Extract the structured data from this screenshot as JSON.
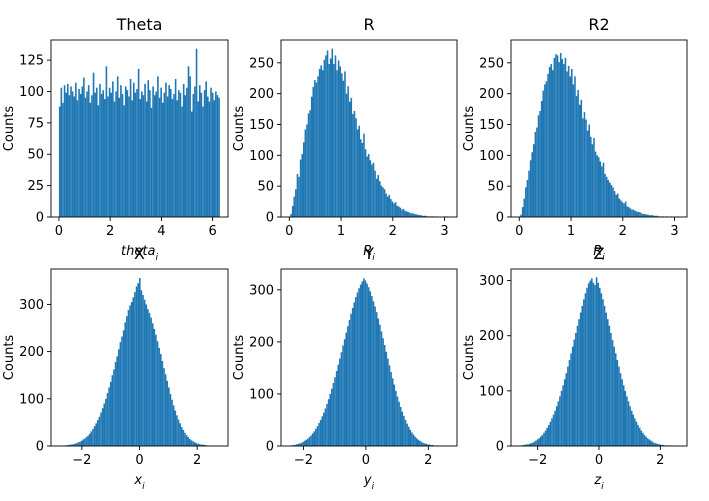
{
  "figure": {
    "background": "#ffffff",
    "bar_color": "#1f77b4"
  },
  "chart_data": [
    {
      "type": "bar",
      "title": "Theta",
      "xlabel": "theta_i",
      "ylabel": "Counts",
      "xlim": [
        -0.31,
        6.6
      ],
      "ylim": [
        0,
        141
      ],
      "xticks": [
        0,
        2,
        4,
        6
      ],
      "xtick_labels": [
        "0",
        "2",
        "4",
        "6"
      ],
      "yticks": [
        0,
        25,
        50,
        75,
        100,
        125
      ],
      "ytick_labels": [
        "0",
        "25",
        "50",
        "75",
        "100",
        "125"
      ],
      "bins": {
        "start": 0,
        "end": 6.2832,
        "count": 100
      },
      "counts": [
        88,
        103,
        91,
        105,
        99,
        106,
        97,
        104,
        100,
        96,
        107,
        93,
        102,
        98,
        104,
        111,
        95,
        100,
        105,
        91,
        97,
        115,
        99,
        103,
        89,
        106,
        98,
        101,
        94,
        120,
        96,
        103,
        99,
        108,
        92,
        100,
        112,
        95,
        105,
        98,
        89,
        104,
        101,
        96,
        110,
        93,
        107,
        99,
        102,
        118,
        94,
        100,
        97,
        106,
        92,
        109,
        101,
        87,
        104,
        97,
        100,
        112,
        95,
        103,
        91,
        99,
        107,
        96,
        105,
        102,
        94,
        98,
        110,
        93,
        101,
        99,
        88,
        106,
        97,
        103,
        120,
        112,
        84,
        98,
        104,
        134,
        92,
        105,
        99,
        88,
        101,
        108,
        96,
        92,
        103,
        99,
        93,
        100,
        97,
        95
      ]
    },
    {
      "type": "bar",
      "title": "R",
      "xlabel": "R_i",
      "ylabel": "Counts",
      "xlim": [
        -0.16,
        3.24
      ],
      "ylim": [
        0,
        287
      ],
      "xticks": [
        0,
        1,
        2,
        3
      ],
      "xtick_labels": [
        "0",
        "1",
        "2",
        "3"
      ],
      "yticks": [
        0,
        50,
        100,
        150,
        200,
        250
      ],
      "ytick_labels": [
        "0",
        "50",
        "100",
        "150",
        "200",
        "250"
      ],
      "bins": {
        "start": 0.02,
        "end": 3.08,
        "count": 100
      },
      "counts": [
        5,
        18,
        33,
        45,
        70,
        65,
        93,
        102,
        121,
        142,
        150,
        168,
        173,
        195,
        211,
        222,
        218,
        228,
        240,
        246,
        238,
        255,
        262,
        270,
        248,
        257,
        273,
        248,
        262,
        238,
        254,
        244,
        233,
        221,
        236,
        200,
        212,
        187,
        193,
        167,
        172,
        160,
        142,
        148,
        126,
        120,
        135,
        110,
        98,
        102,
        92,
        85,
        88,
        75,
        62,
        68,
        58,
        51,
        48,
        45,
        38,
        33,
        36,
        29,
        25,
        22,
        24,
        18,
        17,
        15,
        12,
        13,
        10,
        9,
        8,
        7,
        6,
        6,
        5,
        4,
        4,
        3,
        3,
        2,
        2,
        2,
        1,
        1,
        1,
        1,
        1,
        0,
        1,
        0,
        0,
        0,
        0,
        1,
        0,
        1
      ]
    },
    {
      "type": "bar",
      "title": "R2",
      "xlabel": "R_i",
      "ylabel": "Counts",
      "xlim": [
        -0.16,
        3.24
      ],
      "ylim": [
        0,
        287
      ],
      "xticks": [
        0,
        1,
        2,
        3
      ],
      "xtick_labels": [
        "0",
        "1",
        "2",
        "3"
      ],
      "yticks": [
        0,
        50,
        100,
        150,
        200,
        250
      ],
      "ytick_labels": [
        "0",
        "50",
        "100",
        "150",
        "200",
        "250"
      ],
      "bins": {
        "start": 0.02,
        "end": 3.08,
        "count": 100
      },
      "counts": [
        4,
        16,
        30,
        48,
        60,
        75,
        92,
        105,
        118,
        138,
        145,
        165,
        172,
        188,
        205,
        215,
        220,
        232,
        243,
        248,
        238,
        258,
        264,
        262,
        251,
        266,
        256,
        248,
        258,
        236,
        245,
        228,
        240,
        215,
        228,
        196,
        206,
        182,
        190,
        160,
        170,
        158,
        140,
        150,
        130,
        118,
        128,
        106,
        100,
        97,
        90,
        82,
        88,
        70,
        65,
        60,
        56,
        52,
        48,
        42,
        36,
        38,
        30,
        27,
        24,
        22,
        25,
        17,
        16,
        14,
        12,
        12,
        10,
        9,
        8,
        8,
        6,
        5,
        5,
        4,
        4,
        3,
        3,
        3,
        2,
        2,
        2,
        1,
        1,
        1,
        1,
        0,
        1,
        0,
        0,
        1,
        0,
        0,
        0,
        1
      ]
    },
    {
      "type": "bar",
      "title": "X",
      "xlabel": "x_i",
      "ylabel": "Counts",
      "xlim": [
        -3.07,
        3.07
      ],
      "ylim": [
        0,
        375
      ],
      "xticks": [
        -2,
        0,
        2
      ],
      "xtick_labels": [
        "−2",
        "0",
        "2"
      ],
      "yticks": [
        0,
        100,
        200,
        300
      ],
      "ytick_labels": [
        "0",
        "100",
        "200",
        "300"
      ],
      "bins": {
        "start": -2.65,
        "end": 2.95,
        "count": 100
      },
      "counts": [
        1,
        1,
        2,
        2,
        3,
        3,
        4,
        5,
        6,
        8,
        9,
        11,
        14,
        16,
        19,
        22,
        26,
        31,
        36,
        42,
        48,
        55,
        62,
        71,
        80,
        90,
        100,
        112,
        124,
        136,
        150,
        162,
        178,
        190,
        205,
        220,
        232,
        245,
        262,
        275,
        288,
        298,
        305,
        315,
        326,
        338,
        345,
        356,
        330,
        320,
        310,
        300,
        290,
        282,
        272,
        260,
        248,
        236,
        222,
        208,
        195,
        180,
        165,
        152,
        138,
        124,
        110,
        98,
        86,
        75,
        65,
        56,
        48,
        40,
        34,
        28,
        23,
        19,
        15,
        12,
        10,
        8,
        6,
        5,
        4,
        3,
        3,
        2,
        2,
        1,
        1,
        1,
        1,
        1,
        0,
        1,
        0,
        0,
        1,
        0
      ]
    },
    {
      "type": "bar",
      "title": "Y",
      "xlabel": "y_i",
      "ylabel": "Counts",
      "xlim": [
        -2.72,
        2.92
      ],
      "ylim": [
        0,
        340
      ],
      "xticks": [
        -2,
        0,
        2
      ],
      "xtick_labels": [
        "−2",
        "0",
        "2"
      ],
      "yticks": [
        0,
        100,
        200,
        300
      ],
      "ytick_labels": [
        "0",
        "100",
        "200",
        "300"
      ],
      "bins": {
        "start": -2.45,
        "end": 2.68,
        "count": 100
      },
      "counts": [
        1,
        1,
        2,
        2,
        3,
        4,
        5,
        6,
        8,
        10,
        12,
        14,
        17,
        20,
        24,
        28,
        33,
        38,
        44,
        50,
        57,
        64,
        72,
        81,
        90,
        100,
        110,
        121,
        132,
        144,
        156,
        168,
        180,
        193,
        205,
        218,
        230,
        242,
        254,
        265,
        276,
        286,
        295,
        303,
        310,
        316,
        322,
        318,
        312,
        305,
        297,
        288,
        278,
        268,
        257,
        245,
        233,
        220,
        207,
        194,
        181,
        168,
        155,
        142,
        130,
        118,
        106,
        95,
        85,
        75,
        66,
        58,
        50,
        43,
        37,
        31,
        26,
        22,
        18,
        15,
        12,
        10,
        8,
        6,
        5,
        4,
        3,
        3,
        2,
        2,
        1,
        1,
        1,
        1,
        1,
        0,
        1,
        0,
        0,
        1
      ]
    },
    {
      "type": "bar",
      "title": "Z",
      "xlabel": "z_i",
      "ylabel": "Counts",
      "xlim": [
        -2.87,
        2.87
      ],
      "ylim": [
        0,
        321
      ],
      "xticks": [
        -2,
        0,
        2
      ],
      "xtick_labels": [
        "−2",
        "0",
        "2"
      ],
      "yticks": [
        0,
        100,
        200,
        300
      ],
      "ytick_labels": [
        "0",
        "100",
        "200",
        "300"
      ],
      "bins": {
        "start": -2.6,
        "end": 2.6,
        "count": 100
      },
      "counts": [
        1,
        1,
        2,
        2,
        3,
        3,
        4,
        5,
        6,
        8,
        10,
        12,
        14,
        17,
        20,
        24,
        28,
        33,
        38,
        44,
        50,
        57,
        64,
        72,
        81,
        90,
        100,
        110,
        121,
        132,
        144,
        156,
        168,
        180,
        193,
        205,
        218,
        230,
        242,
        254,
        266,
        277,
        287,
        295,
        300,
        304,
        296,
        292,
        306,
        296,
        287,
        277,
        266,
        254,
        242,
        230,
        218,
        205,
        192,
        180,
        168,
        156,
        144,
        132,
        121,
        110,
        100,
        90,
        81,
        72,
        64,
        57,
        50,
        44,
        38,
        33,
        28,
        24,
        20,
        17,
        14,
        12,
        10,
        8,
        6,
        5,
        4,
        3,
        3,
        2,
        2,
        1,
        1,
        1,
        1,
        1,
        0,
        1,
        0,
        0
      ]
    }
  ]
}
